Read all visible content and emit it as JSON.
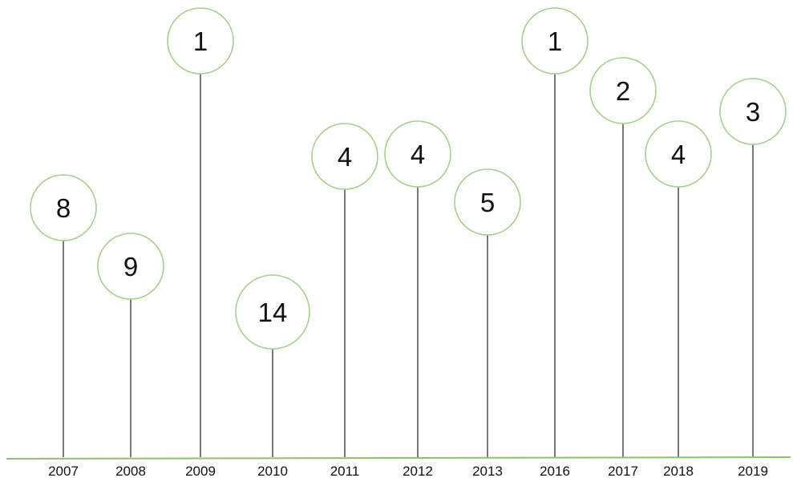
{
  "chart_data": {
    "type": "scatter",
    "categories": [
      "2007",
      "2008",
      "2009",
      "2010",
      "2011",
      "2012",
      "2013",
      "2016",
      "2017",
      "2018",
      "2019"
    ],
    "values": [
      8,
      9,
      1,
      14,
      4,
      4,
      5,
      1,
      2,
      4,
      3
    ],
    "title": "",
    "xlabel": "",
    "ylabel": "",
    "grid": false,
    "colors": {
      "baseline": "#8dc26f",
      "circle_stroke": "#a9cf8c",
      "stem": "#333333",
      "text": "#111111"
    }
  }
}
